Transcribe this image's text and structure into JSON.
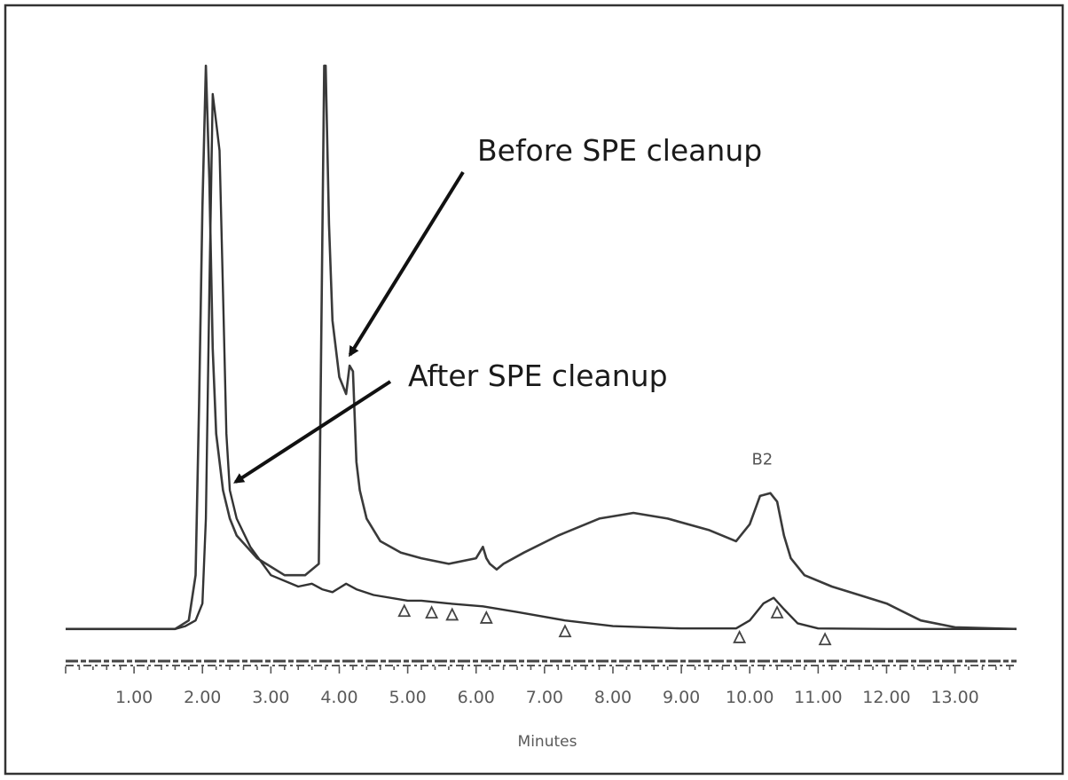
{
  "chart_data": {
    "type": "line",
    "title": "",
    "xlabel": "Minutes",
    "ylabel": "",
    "xlim": [
      0,
      13.9
    ],
    "ylim": [
      0,
      100
    ],
    "x_ticks": [
      "1.00",
      "2.00",
      "3.00",
      "4.00",
      "5.00",
      "6.00",
      "7.00",
      "8.00",
      "9.00",
      "10.00",
      "11.00",
      "12.00",
      "13.00"
    ],
    "x_tick_values": [
      1,
      2,
      3,
      4,
      5,
      6,
      7,
      8,
      9,
      10,
      11,
      12,
      13
    ],
    "grid": false,
    "series": [
      {
        "annotation": "Before SPE cleanup",
        "color": "#3a3a3a",
        "x": [
          0.0,
          1.6,
          1.8,
          1.9,
          1.95,
          2.0,
          2.05,
          2.1,
          2.15,
          2.2,
          2.3,
          2.4,
          2.5,
          2.8,
          3.2,
          3.5,
          3.7,
          3.78,
          3.8,
          3.85,
          3.9,
          4.0,
          4.1,
          4.15,
          4.2,
          4.25,
          4.3,
          4.4,
          4.6,
          4.9,
          5.2,
          5.6,
          6.0,
          6.1,
          6.15,
          6.2,
          6.3,
          6.4,
          6.7,
          7.2,
          7.8,
          8.3,
          8.8,
          9.4,
          9.8,
          10.0,
          10.15,
          10.3,
          10.4,
          10.5,
          10.6,
          10.8,
          11.2,
          11.6,
          12.0,
          12.5,
          13.0,
          13.9
        ],
        "y": [
          0.5,
          0.5,
          2,
          10,
          40,
          75,
          100,
          80,
          50,
          35,
          25,
          20,
          17,
          13,
          10,
          10,
          12,
          100,
          100,
          72,
          55,
          45,
          42,
          47,
          46,
          30,
          25,
          20,
          16,
          14,
          13,
          12,
          13,
          15,
          13,
          12,
          11,
          12,
          14,
          17,
          20,
          21,
          20,
          18,
          16,
          19,
          24,
          24.5,
          23,
          17,
          13,
          10,
          8,
          6.5,
          5,
          2,
          0.8,
          0.5
        ]
      },
      {
        "annotation": "After SPE cleanup",
        "color": "#333333",
        "x": [
          0.0,
          1.6,
          1.75,
          1.9,
          2.0,
          2.05,
          2.1,
          2.15,
          2.2,
          2.25,
          2.3,
          2.35,
          2.4,
          2.5,
          2.7,
          3.0,
          3.4,
          3.6,
          3.75,
          3.9,
          4.1,
          4.25,
          4.5,
          5.0,
          5.2,
          5.6,
          6.1,
          6.6,
          7.3,
          8.0,
          9.0,
          9.8,
          10.0,
          10.2,
          10.35,
          10.5,
          10.7,
          11.0,
          12.0,
          13.0,
          13.9
        ],
        "y": [
          0.5,
          0.5,
          1,
          2,
          5,
          20,
          60,
          95,
          90,
          85,
          60,
          35,
          25,
          20,
          15,
          10,
          8,
          8.5,
          7.5,
          7,
          8.5,
          7.5,
          6.5,
          5.5,
          5.5,
          5,
          4.5,
          3.5,
          2,
          1,
          0.6,
          0.6,
          2,
          5,
          6,
          4,
          1.5,
          0.6,
          0.5,
          0.5,
          0.5
        ]
      }
    ],
    "peak_markers": [
      4.95,
      5.35,
      5.65,
      6.15,
      7.3,
      9.85,
      10.4,
      11.1
    ],
    "annotations": [
      {
        "text": "Before SPE cleanup",
        "target_x": 4.08,
        "target_y": 48
      },
      {
        "text": "After SPE cleanup",
        "target_x": 2.38,
        "target_y": 26
      }
    ],
    "peak_labels": [
      {
        "text": "B2",
        "x": 10.3,
        "y": 24.5
      }
    ]
  }
}
